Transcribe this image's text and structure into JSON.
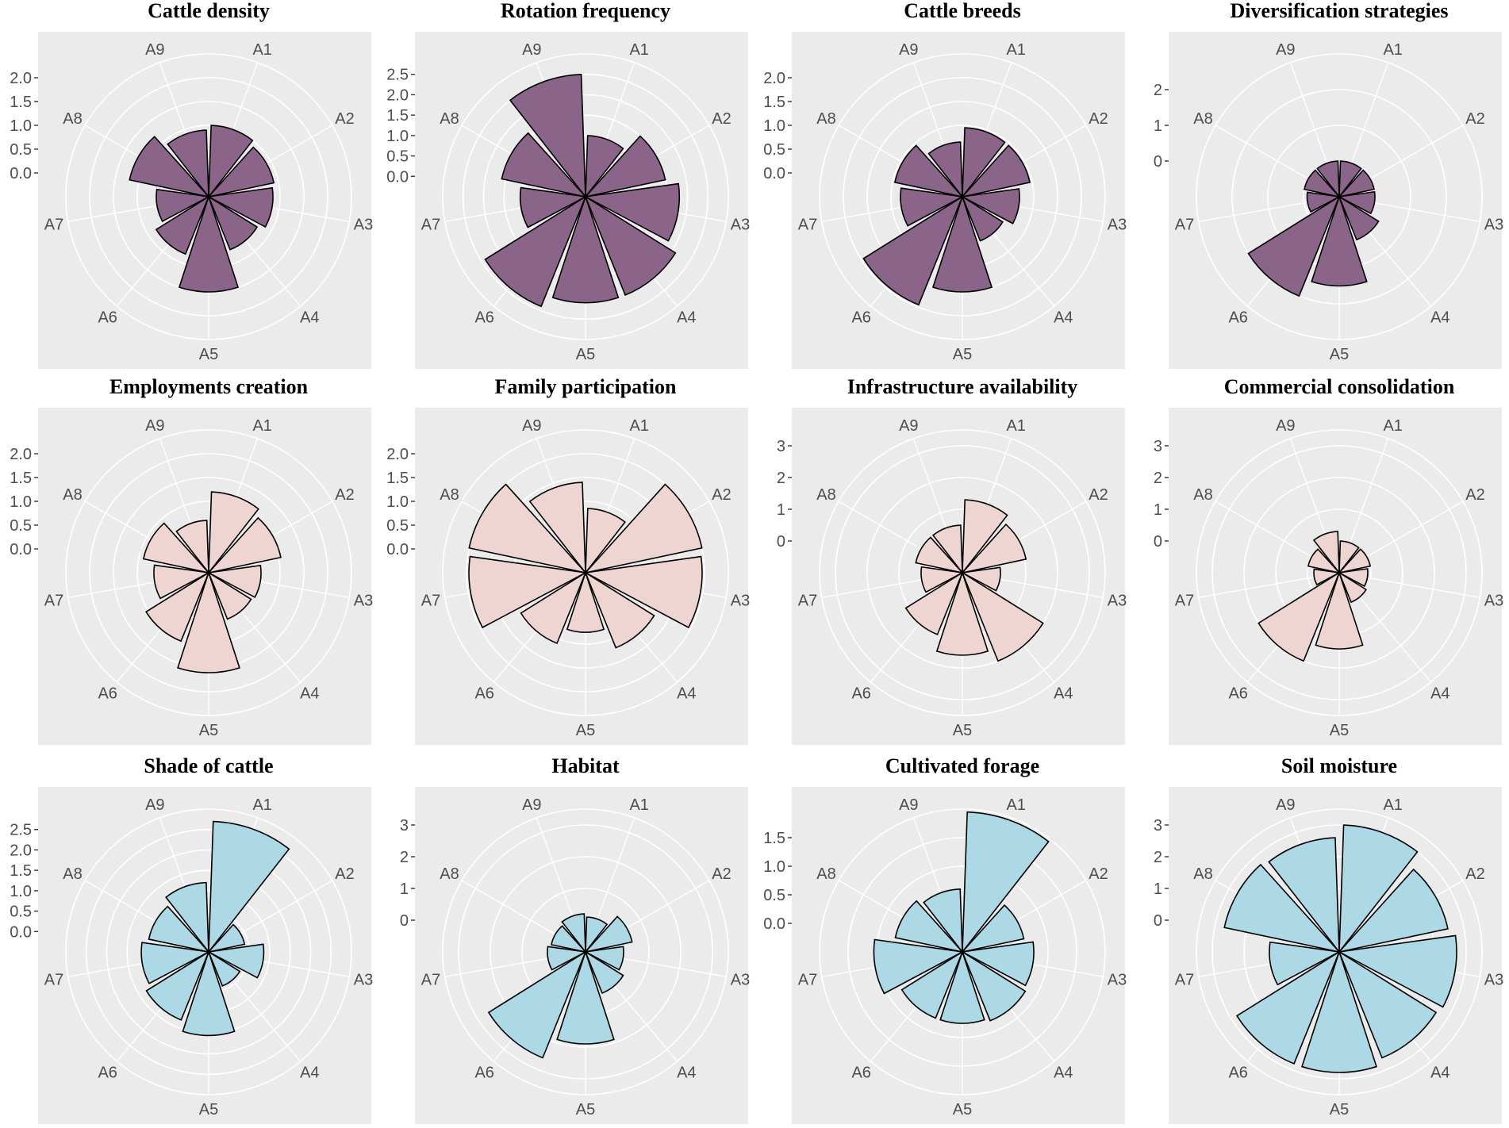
{
  "figure": {
    "categories": [
      "A1",
      "A2",
      "A3",
      "A4",
      "A5",
      "A6",
      "A7",
      "A8",
      "A9"
    ],
    "colors": {
      "purple": "#8b6589",
      "pink": "#efd5d2",
      "blue": "#add8e6",
      "panel_bg": "#ebebeb",
      "grid": "#ffffff",
      "outline": "#000000"
    }
  },
  "chart_data": [
    {
      "type": "polar-bar",
      "title": "Cattle density",
      "fill": "#8b6589",
      "ylim": [
        -0.5,
        2.5
      ],
      "yticks": [
        "2.0",
        "1.5",
        "1.0",
        "0.5",
        "0.0"
      ],
      "ytick_values": [
        2.0,
        1.5,
        1.0,
        0.5,
        0.0
      ],
      "categories": [
        "A1",
        "A2",
        "A3",
        "A4",
        "A5",
        "A6",
        "A7",
        "A8",
        "A9"
      ],
      "values": [
        1.0,
        0.9,
        0.85,
        0.7,
        1.5,
        0.8,
        0.6,
        1.2,
        0.9
      ]
    },
    {
      "type": "polar-bar",
      "title": "Rotation frequency",
      "fill": "#8b6589",
      "ylim": [
        -0.5,
        3.0
      ],
      "yticks": [
        "2.5",
        "2.0",
        "1.5",
        "1.0",
        "0.5",
        "0.0"
      ],
      "ytick_values": [
        2.5,
        2.0,
        1.5,
        1.0,
        0.5,
        0.0
      ],
      "categories": [
        "A1",
        "A2",
        "A3",
        "A4",
        "A5",
        "A6",
        "A7",
        "A8",
        "A9"
      ],
      "values": [
        1.0,
        1.5,
        1.8,
        2.1,
        2.1,
        2.4,
        1.1,
        1.6,
        2.5
      ]
    },
    {
      "type": "polar-bar",
      "title": "Cattle breeds",
      "fill": "#8b6589",
      "ylim": [
        -0.5,
        2.5
      ],
      "yticks": [
        "2.0",
        "1.5",
        "1.0",
        "0.5",
        "0.0"
      ],
      "ytick_values": [
        2.0,
        1.5,
        1.0,
        0.5,
        0.0
      ],
      "categories": [
        "A1",
        "A2",
        "A3",
        "A4",
        "A5",
        "A6",
        "A7",
        "A8",
        "A9"
      ],
      "values": [
        0.95,
        0.95,
        0.7,
        0.5,
        1.5,
        1.95,
        0.8,
        0.95,
        0.65
      ]
    },
    {
      "type": "polar-bar",
      "title": "Diversification strategies",
      "fill": "#8b6589",
      "ylim": [
        -1,
        3
      ],
      "yticks": [
        "2",
        "1",
        "0"
      ],
      "ytick_values": [
        2,
        1,
        0
      ],
      "categories": [
        "A1",
        "A2",
        "A3",
        "A4",
        "A5",
        "A6",
        "A7",
        "A8",
        "A9"
      ],
      "values": [
        0.0,
        0.0,
        0.0,
        0.3,
        1.5,
        2.0,
        -0.1,
        0.0,
        0.0
      ]
    },
    {
      "type": "polar-bar",
      "title": "Employments creation",
      "fill": "#efd5d2",
      "ylim": [
        -0.5,
        2.5
      ],
      "yticks": [
        "2.0",
        "1.5",
        "1.0",
        "0.5",
        "0.0"
      ],
      "ytick_values": [
        2.0,
        1.5,
        1.0,
        0.5,
        0.0
      ],
      "categories": [
        "A1",
        "A2",
        "A3",
        "A4",
        "A5",
        "A6",
        "A7",
        "A8",
        "A9"
      ],
      "values": [
        1.2,
        1.05,
        0.6,
        0.55,
        1.6,
        1.05,
        0.65,
        0.9,
        0.6
      ]
    },
    {
      "type": "polar-bar",
      "title": "Family participation",
      "fill": "#efd5d2",
      "ylim": [
        -0.5,
        2.5
      ],
      "yticks": [
        "2.0",
        "1.5",
        "1.0",
        "0.5",
        "0.0"
      ],
      "ytick_values": [
        2.0,
        1.5,
        1.0,
        0.5,
        0.0
      ],
      "categories": [
        "A1",
        "A2",
        "A3",
        "A4",
        "A5",
        "A6",
        "A7",
        "A8",
        "A9"
      ],
      "values": [
        0.85,
        2.0,
        1.95,
        1.2,
        0.75,
        1.1,
        1.95,
        2.0,
        1.4
      ]
    },
    {
      "type": "polar-bar",
      "title": "Infrastructure availability",
      "fill": "#efd5d2",
      "ylim": [
        -1,
        3.5
      ],
      "yticks": [
        "3",
        "2",
        "1",
        "0"
      ],
      "ytick_values": [
        3,
        2,
        1,
        0
      ],
      "categories": [
        "A1",
        "A2",
        "A3",
        "A4",
        "A5",
        "A6",
        "A7",
        "A8",
        "A9"
      ],
      "values": [
        1.3,
        1.05,
        0.2,
        2.0,
        1.6,
        1.1,
        0.3,
        0.5,
        0.5
      ]
    },
    {
      "type": "polar-bar",
      "title": "Commercial consolidation",
      "fill": "#efd5d2",
      "ylim": [
        -1,
        3.5
      ],
      "yticks": [
        "3",
        "2",
        "1",
        "0"
      ],
      "ytick_values": [
        3,
        2,
        1,
        0
      ],
      "categories": [
        "A1",
        "A2",
        "A3",
        "A4",
        "A5",
        "A6",
        "A7",
        "A8",
        "A9"
      ],
      "values": [
        0.0,
        0.0,
        -0.1,
        0.0,
        1.4,
        2.0,
        -0.2,
        0.0,
        0.3
      ]
    },
    {
      "type": "polar-bar",
      "title": "Shade of cattle",
      "fill": "#add8e6",
      "ylim": [
        -0.5,
        3.0
      ],
      "yticks": [
        "2.5",
        "2.0",
        "1.5",
        "1.0",
        "0.5",
        "0.0"
      ],
      "ytick_values": [
        2.5,
        2.0,
        1.5,
        1.0,
        0.5,
        0.0
      ],
      "categories": [
        "A1",
        "A2",
        "A3",
        "A4",
        "A5",
        "A6",
        "A7",
        "A8",
        "A9"
      ],
      "values": [
        2.7,
        0.4,
        0.85,
        0.4,
        1.55,
        1.3,
        1.15,
        1.0,
        1.2
      ]
    },
    {
      "type": "polar-bar",
      "title": "Habitat",
      "fill": "#add8e6",
      "ylim": [
        -1,
        3.5
      ],
      "yticks": [
        "3",
        "2",
        "1",
        "0"
      ],
      "ytick_values": [
        3,
        2,
        1,
        0
      ],
      "categories": [
        "A1",
        "A2",
        "A3",
        "A4",
        "A5",
        "A6",
        "A7",
        "A8",
        "A9"
      ],
      "values": [
        0.1,
        0.5,
        0.2,
        0.4,
        1.9,
        2.6,
        0.2,
        0.1,
        0.2
      ]
    },
    {
      "type": "polar-bar",
      "title": "Cultivated forage",
      "fill": "#add8e6",
      "ylim": [
        -0.5,
        2.0
      ],
      "yticks": [
        "1.5",
        "1.0",
        "0.5",
        "0.0"
      ],
      "ytick_values": [
        1.5,
        1.0,
        0.5,
        0.0
      ],
      "categories": [
        "A1",
        "A2",
        "A3",
        "A4",
        "A5",
        "A6",
        "A7",
        "A8",
        "A9"
      ],
      "values": [
        1.95,
        0.6,
        0.75,
        0.8,
        0.75,
        0.75,
        1.05,
        0.7,
        0.6
      ]
    },
    {
      "type": "polar-bar",
      "title": "Soil moisture",
      "fill": "#add8e6",
      "ylim": [
        -1,
        3.5
      ],
      "yticks": [
        "3",
        "2",
        "1",
        "0"
      ],
      "ytick_values": [
        3,
        2,
        1,
        0
      ],
      "categories": [
        "A1",
        "A2",
        "A3",
        "A4",
        "A5",
        "A6",
        "A7",
        "A8",
        "A9"
      ],
      "values": [
        3.0,
        2.5,
        2.7,
        2.6,
        2.8,
        2.8,
        1.2,
        2.7,
        2.6
      ]
    }
  ]
}
